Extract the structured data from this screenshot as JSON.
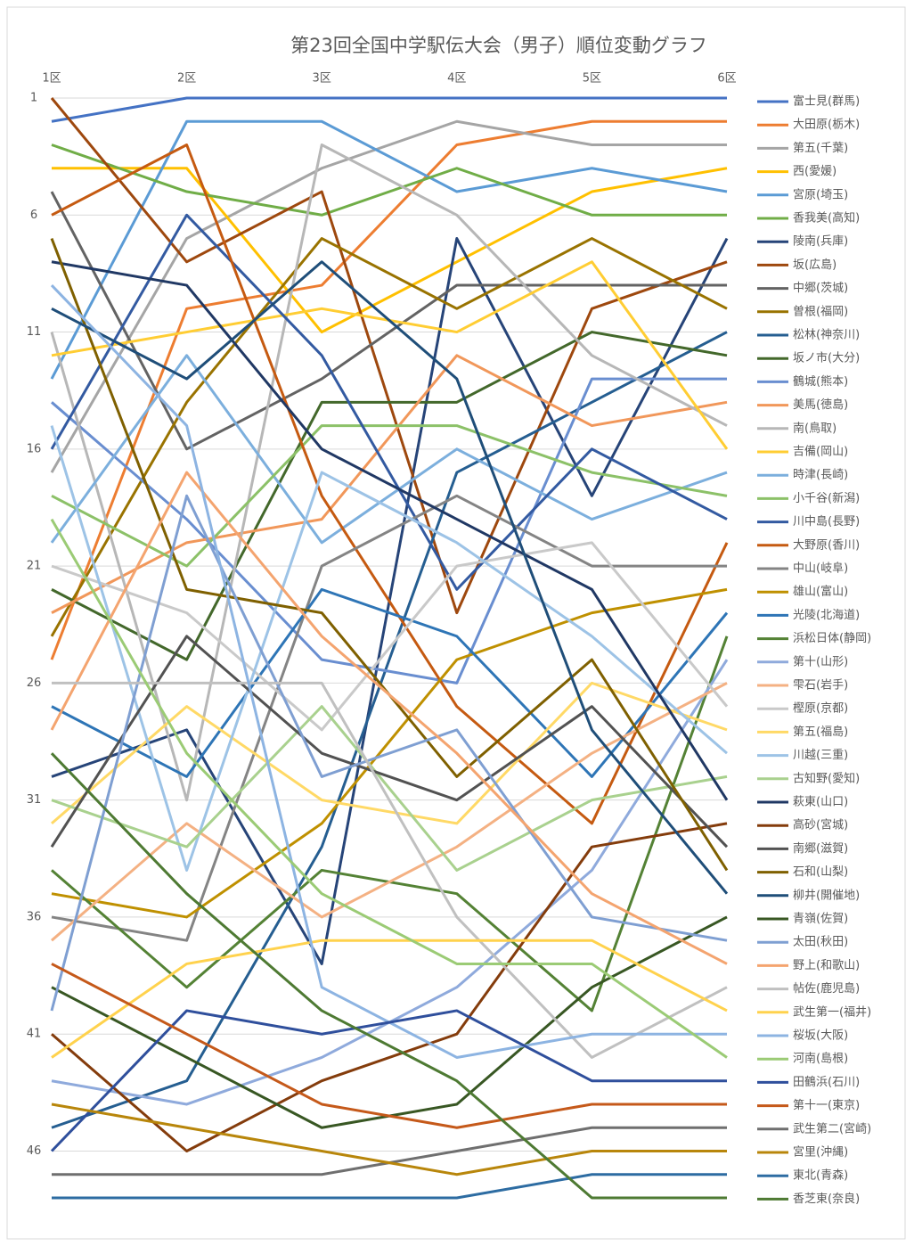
{
  "chart_data": {
    "type": "line",
    "title": "第23回全国中学駅伝大会（男子）順位変動グラフ",
    "categories": [
      "1区",
      "2区",
      "3区",
      "4区",
      "5区",
      "6区"
    ],
    "ylim": [
      1,
      48
    ],
    "y_reversed": true,
    "yticks": [
      1,
      6,
      11,
      16,
      21,
      26,
      31,
      36,
      41,
      46
    ],
    "grid": true,
    "legend": "right",
    "series": [
      {
        "name": "富士見(群馬)",
        "color": "#4472c4",
        "values": [
          2,
          1,
          1,
          1,
          1,
          1
        ]
      },
      {
        "name": "大田原(栃木)",
        "color": "#ed7d31",
        "values": [
          25,
          10,
          9,
          3,
          2,
          2
        ]
      },
      {
        "name": "第五(千葉)",
        "color": "#a5a5a5",
        "values": [
          17,
          7,
          4,
          2,
          3,
          3
        ]
      },
      {
        "name": "西(愛媛)",
        "color": "#ffc000",
        "values": [
          4,
          4,
          11,
          8,
          5,
          4
        ]
      },
      {
        "name": "宮原(埼玉)",
        "color": "#5b9bd5",
        "values": [
          13,
          2,
          2,
          5,
          4,
          5
        ]
      },
      {
        "name": "香我美(高知)",
        "color": "#70ad47",
        "values": [
          3,
          5,
          6,
          4,
          6,
          6
        ]
      },
      {
        "name": "陵南(兵庫)",
        "color": "#264478",
        "values": [
          30,
          28,
          38,
          7,
          18,
          7
        ]
      },
      {
        "name": "坂(広島)",
        "color": "#9e480e",
        "values": [
          1,
          8,
          5,
          23,
          10,
          8
        ]
      },
      {
        "name": "中郷(茨城)",
        "color": "#636363",
        "values": [
          5,
          16,
          13,
          9,
          9,
          9
        ]
      },
      {
        "name": "曽根(福岡)",
        "color": "#997300",
        "values": [
          24,
          14,
          7,
          10,
          7,
          10
        ]
      },
      {
        "name": "松林(神奈川)",
        "color": "#255e91",
        "values": [
          45,
          43,
          33,
          17,
          14,
          11
        ]
      },
      {
        "name": "坂ノ市(大分)",
        "color": "#43682b",
        "values": [
          22,
          25,
          14,
          14,
          11,
          12
        ]
      },
      {
        "name": "鶴城(熊本)",
        "color": "#698ed0",
        "values": [
          14,
          19,
          25,
          26,
          13,
          13
        ]
      },
      {
        "name": "美馬(徳島)",
        "color": "#f1975a",
        "values": [
          23,
          20,
          19,
          12,
          15,
          14
        ]
      },
      {
        "name": "南(鳥取)",
        "color": "#b7b7b7",
        "values": [
          11,
          31,
          3,
          6,
          12,
          15
        ]
      },
      {
        "name": "吉備(岡山)",
        "color": "#ffcd33",
        "values": [
          12,
          11,
          10,
          11,
          8,
          16
        ]
      },
      {
        "name": "時津(長崎)",
        "color": "#7cafdd",
        "values": [
          20,
          12,
          20,
          16,
          19,
          17
        ]
      },
      {
        "name": "小千谷(新潟)",
        "color": "#8cc168",
        "values": [
          18,
          21,
          15,
          15,
          17,
          18
        ]
      },
      {
        "name": "川中島(長野)",
        "color": "#335aa1",
        "values": [
          16,
          6,
          12,
          22,
          16,
          19
        ]
      },
      {
        "name": "大野原(香川)",
        "color": "#c55a11",
        "values": [
          6,
          3,
          18,
          27,
          32,
          20
        ]
      },
      {
        "name": "中山(岐阜)",
        "color": "#848484",
        "values": [
          36,
          37,
          21,
          18,
          21,
          21
        ]
      },
      {
        "name": "雄山(富山)",
        "color": "#bf9000",
        "values": [
          35,
          36,
          32,
          25,
          23,
          22
        ]
      },
      {
        "name": "光陵(北海道)",
        "color": "#2e75b6",
        "values": [
          27,
          30,
          22,
          24,
          30,
          23
        ]
      },
      {
        "name": "浜松日体(静岡)",
        "color": "#548235",
        "values": [
          34,
          39,
          34,
          35,
          40,
          24
        ]
      },
      {
        "name": "第十(山形)",
        "color": "#8faadc",
        "values": [
          43,
          44,
          42,
          39,
          34,
          25
        ]
      },
      {
        "name": "雫石(岩手)",
        "color": "#f4b183",
        "values": [
          37,
          32,
          36,
          33,
          29,
          26
        ]
      },
      {
        "name": "樫原(京都)",
        "color": "#c9c9c9",
        "values": [
          21,
          23,
          28,
          21,
          20,
          27
        ]
      },
      {
        "name": "第五(福島)",
        "color": "#ffd966",
        "values": [
          32,
          27,
          31,
          32,
          26,
          28
        ]
      },
      {
        "name": "川越(三重)",
        "color": "#9dc3e6",
        "values": [
          15,
          34,
          17,
          20,
          24,
          29
        ]
      },
      {
        "name": "古知野(愛知)",
        "color": "#a9d18e",
        "values": [
          31,
          33,
          27,
          34,
          31,
          30
        ]
      },
      {
        "name": "萩東(山口)",
        "color": "#203864",
        "values": [
          8,
          9,
          16,
          19,
          22,
          31
        ]
      },
      {
        "name": "高砂(宮城)",
        "color": "#843c0c",
        "values": [
          41,
          46,
          43,
          41,
          33,
          32
        ]
      },
      {
        "name": "南郷(滋賀)",
        "color": "#525252",
        "values": [
          33,
          24,
          29,
          31,
          27,
          33
        ]
      },
      {
        "name": "石和(山梨)",
        "color": "#7f6000",
        "values": [
          7,
          22,
          23,
          30,
          25,
          34
        ]
      },
      {
        "name": "柳井(開催地)",
        "color": "#1f4e79",
        "values": [
          10,
          13,
          8,
          13,
          28,
          35
        ]
      },
      {
        "name": "青嶺(佐賀)",
        "color": "#385723",
        "values": [
          39,
          42,
          45,
          44,
          39,
          36
        ]
      },
      {
        "name": "太田(秋田)",
        "color": "#7f9fd2",
        "values": [
          40,
          18,
          30,
          28,
          36,
          37
        ]
      },
      {
        "name": "野上(和歌山)",
        "color": "#f4a46f",
        "values": [
          28,
          17,
          24,
          29,
          35,
          38
        ]
      },
      {
        "name": "帖佐(鹿児島)",
        "color": "#c0c0c0",
        "values": [
          26,
          26,
          26,
          36,
          42,
          39
        ]
      },
      {
        "name": "武生第一(福井)",
        "color": "#ffd24d",
        "values": [
          42,
          38,
          37,
          37,
          37,
          40
        ]
      },
      {
        "name": "桜坂(大阪)",
        "color": "#8db4e2",
        "values": [
          9,
          15,
          39,
          42,
          41,
          41
        ]
      },
      {
        "name": "河南(島根)",
        "color": "#9bcb75",
        "values": [
          19,
          29,
          35,
          38,
          38,
          42
        ]
      },
      {
        "name": "田鶴浜(石川)",
        "color": "#2f4f9c",
        "values": [
          46,
          40,
          41,
          40,
          43,
          43
        ]
      },
      {
        "name": "第十一(東京)",
        "color": "#c5591a",
        "values": [
          38,
          41,
          44,
          45,
          44,
          44
        ]
      },
      {
        "name": "武生第二(宮崎)",
        "color": "#6f6f6f",
        "values": [
          47,
          47,
          47,
          46,
          45,
          45
        ]
      },
      {
        "name": "宮里(沖縄)",
        "color": "#b8860b",
        "values": [
          44,
          45,
          46,
          47,
          46,
          46
        ]
      },
      {
        "name": "東北(青森)",
        "color": "#2d6ca2",
        "values": [
          48,
          48,
          48,
          48,
          47,
          47
        ]
      },
      {
        "name": "香芝東(奈良)",
        "color": "#4e7a33",
        "values": [
          29,
          35,
          40,
          43,
          48,
          48
        ]
      }
    ]
  }
}
